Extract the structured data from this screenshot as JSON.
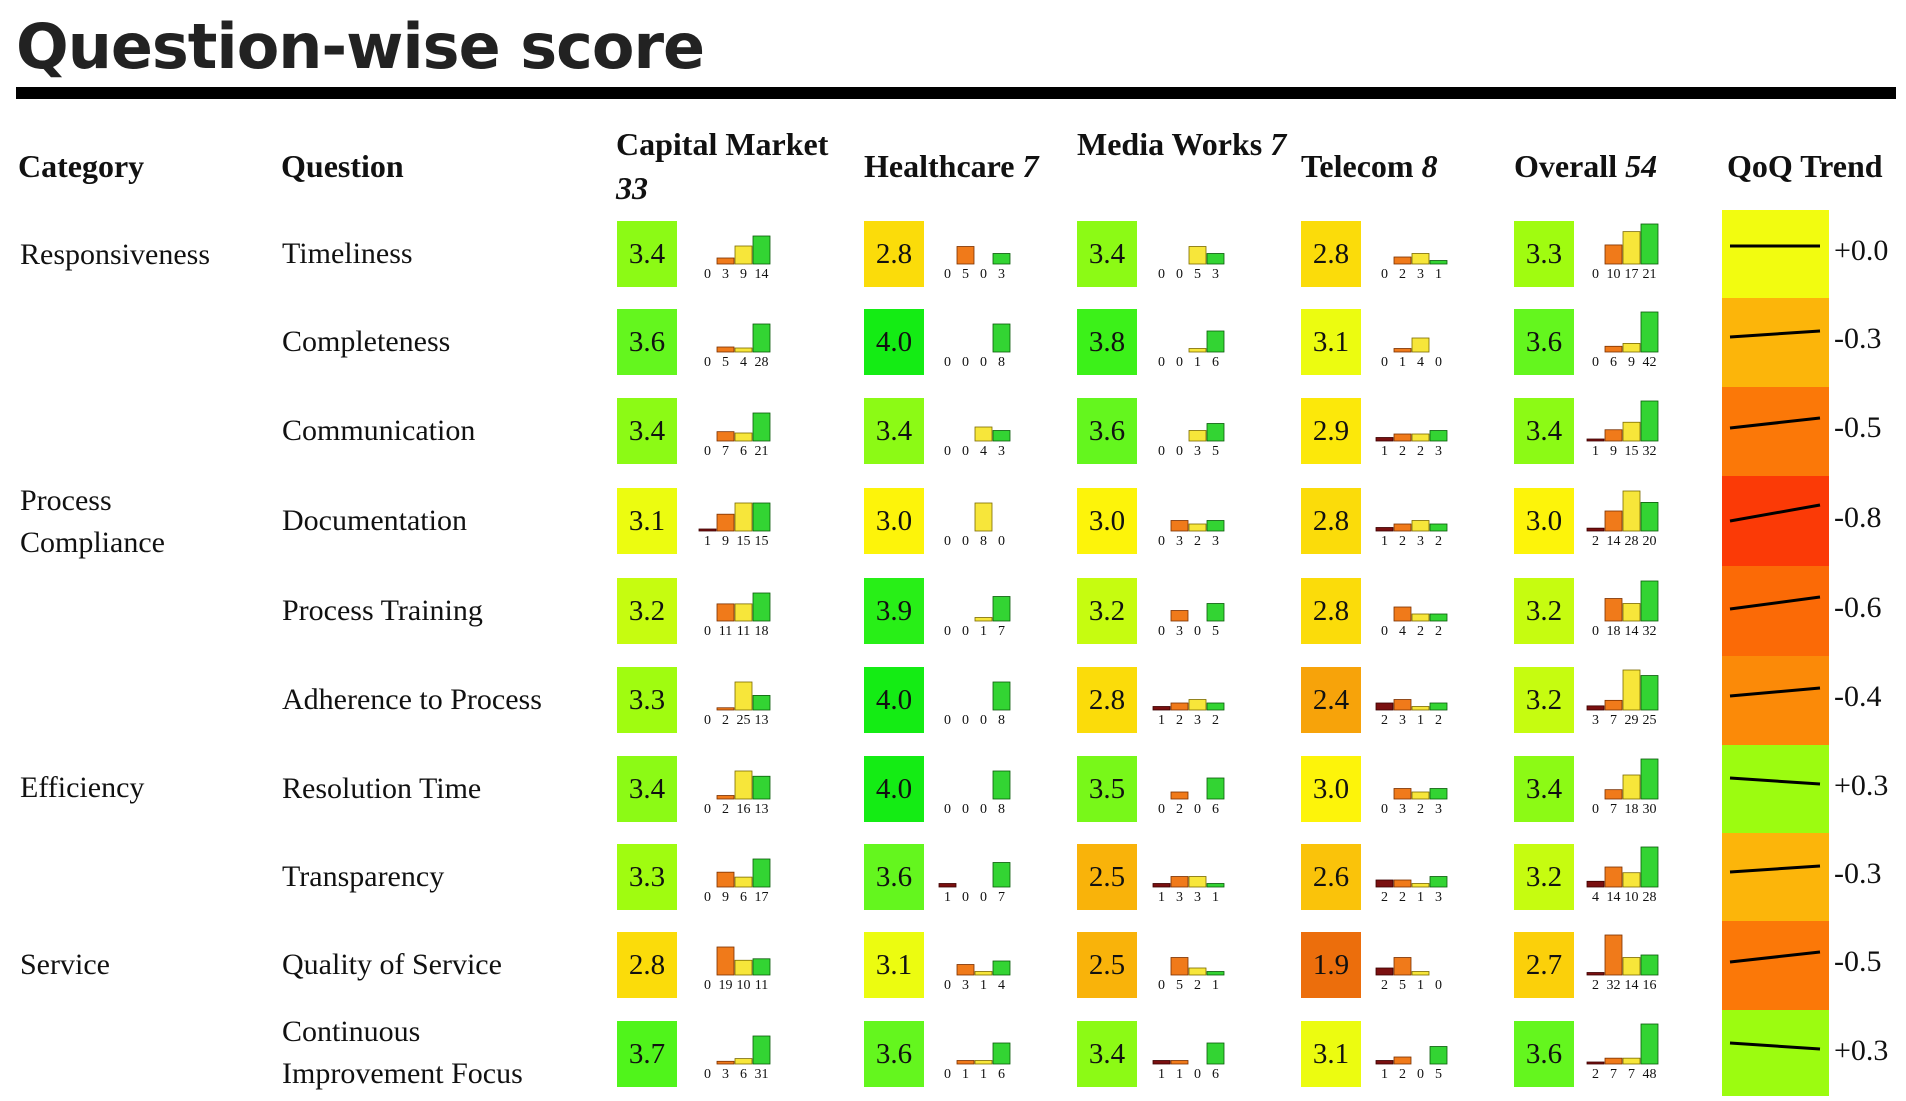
{
  "page": {
    "title": "Question-wise score"
  },
  "header": {
    "category": "Category",
    "question": "Question",
    "overall": {
      "name": "Overall",
      "count": "54"
    },
    "trend": "QoQ Trend"
  },
  "accounts": [
    {
      "name": "Capital Market",
      "count": "33"
    },
    {
      "name": "Healthcare",
      "count": "7"
    },
    {
      "name": "Media Works",
      "count": "7"
    },
    {
      "name": "Telecom",
      "count": "8"
    }
  ],
  "categories": [
    "Responsiveness",
    "Process Compliance",
    "Efficiency",
    "Service"
  ],
  "rows": [
    {
      "question": "Timeliness",
      "scores": [
        "3.4",
        "2.8",
        "3.4",
        "2.8",
        "3.3"
      ],
      "dists": [
        [
          0,
          3,
          9,
          14
        ],
        [
          0,
          5,
          0,
          3
        ],
        [
          0,
          0,
          5,
          3
        ],
        [
          0,
          2,
          3,
          1
        ],
        [
          0,
          10,
          17,
          21
        ]
      ],
      "trend": "+0.0",
      "trend_delta": 0.0
    },
    {
      "question": "Completeness",
      "scores": [
        "3.6",
        "4.0",
        "3.8",
        "3.1",
        "3.6"
      ],
      "dists": [
        [
          0,
          5,
          4,
          28
        ],
        [
          0,
          0,
          0,
          8
        ],
        [
          0,
          0,
          1,
          6
        ],
        [
          0,
          1,
          4,
          0
        ],
        [
          0,
          6,
          9,
          42
        ]
      ],
      "trend": "-0.3",
      "trend_delta": -0.3
    },
    {
      "question": "Communication",
      "scores": [
        "3.4",
        "3.4",
        "3.6",
        "2.9",
        "3.4"
      ],
      "dists": [
        [
          0,
          7,
          6,
          21
        ],
        [
          0,
          0,
          4,
          3
        ],
        [
          0,
          0,
          3,
          5
        ],
        [
          1,
          2,
          2,
          3
        ],
        [
          1,
          9,
          15,
          32
        ]
      ],
      "trend": "-0.5",
      "trend_delta": -0.5
    },
    {
      "question": "Documentation",
      "scores": [
        "3.1",
        "3.0",
        "3.0",
        "2.8",
        "3.0"
      ],
      "dists": [
        [
          1,
          9,
          15,
          15
        ],
        [
          0,
          0,
          8,
          0
        ],
        [
          0,
          3,
          2,
          3
        ],
        [
          1,
          2,
          3,
          2
        ],
        [
          2,
          14,
          28,
          20
        ]
      ],
      "trend": "-0.8",
      "trend_delta": -0.8
    },
    {
      "question": "Process Training",
      "scores": [
        "3.2",
        "3.9",
        "3.2",
        "2.8",
        "3.2"
      ],
      "dists": [
        [
          0,
          11,
          11,
          18
        ],
        [
          0,
          0,
          1,
          7
        ],
        [
          0,
          3,
          0,
          5
        ],
        [
          0,
          4,
          2,
          2
        ],
        [
          0,
          18,
          14,
          32
        ]
      ],
      "trend": "-0.6",
      "trend_delta": -0.6
    },
    {
      "question": "Adherence to Process",
      "scores": [
        "3.3",
        "4.0",
        "2.8",
        "2.4",
        "3.2"
      ],
      "dists": [
        [
          0,
          2,
          25,
          13
        ],
        [
          0,
          0,
          0,
          8
        ],
        [
          1,
          2,
          3,
          2
        ],
        [
          2,
          3,
          1,
          2
        ],
        [
          3,
          7,
          29,
          25
        ]
      ],
      "trend": "-0.4",
      "trend_delta": -0.4
    },
    {
      "question": "Resolution Time",
      "scores": [
        "3.4",
        "4.0",
        "3.5",
        "3.0",
        "3.4"
      ],
      "dists": [
        [
          0,
          2,
          16,
          13
        ],
        [
          0,
          0,
          0,
          8
        ],
        [
          0,
          2,
          0,
          6
        ],
        [
          0,
          3,
          2,
          3
        ],
        [
          0,
          7,
          18,
          30
        ]
      ],
      "trend": "+0.3",
      "trend_delta": 0.3
    },
    {
      "question": "Transparency",
      "scores": [
        "3.3",
        "3.6",
        "2.5",
        "2.6",
        "3.2"
      ],
      "dists": [
        [
          0,
          9,
          6,
          17
        ],
        [
          1,
          0,
          0,
          7
        ],
        [
          1,
          3,
          3,
          1
        ],
        [
          2,
          2,
          1,
          3
        ],
        [
          4,
          14,
          10,
          28
        ]
      ],
      "trend": "-0.3",
      "trend_delta": -0.3
    },
    {
      "question": "Quality of Service",
      "scores": [
        "2.8",
        "3.1",
        "2.5",
        "1.9",
        "2.7"
      ],
      "dists": [
        [
          0,
          19,
          10,
          11
        ],
        [
          0,
          3,
          1,
          4
        ],
        [
          0,
          5,
          2,
          1
        ],
        [
          2,
          5,
          1,
          0
        ],
        [
          2,
          32,
          14,
          16
        ]
      ],
      "trend": "-0.5",
      "trend_delta": -0.5
    },
    {
      "question": "Continuous Improvement Focus",
      "scores": [
        "3.7",
        "3.6",
        "3.4",
        "3.1",
        "3.6"
      ],
      "dists": [
        [
          0,
          3,
          6,
          31
        ],
        [
          0,
          1,
          1,
          6
        ],
        [
          1,
          1,
          0,
          6
        ],
        [
          1,
          2,
          0,
          5
        ],
        [
          2,
          7,
          7,
          48
        ]
      ],
      "trend": "+0.3",
      "trend_delta": 0.3
    }
  ],
  "colors": {
    "bar_fills": [
      "#7a1010",
      "#f07a1a",
      "#f7e63a",
      "#33d433"
    ],
    "bar_strokes": [
      "#3b0000",
      "#7a3000",
      "#7a6a00",
      "#0a5a0a"
    ]
  }
}
